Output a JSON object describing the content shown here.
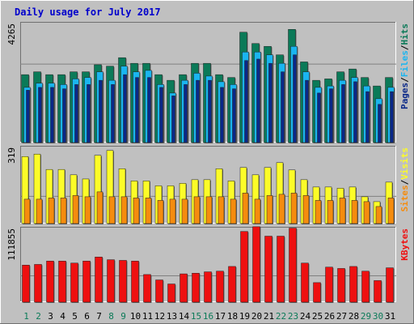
{
  "chart_data": {
    "type": "bar",
    "title": "Daily usage for July 2017",
    "categories": [
      "1",
      "2",
      "3",
      "4",
      "5",
      "6",
      "7",
      "8",
      "9",
      "10",
      "11",
      "12",
      "13",
      "14",
      "15",
      "16",
      "17",
      "18",
      "19",
      "20",
      "21",
      "22",
      "23",
      "24",
      "25",
      "26",
      "27",
      "28",
      "29",
      "30",
      "31"
    ],
    "weekend_days": [
      "1",
      "2",
      "8",
      "9",
      "15",
      "16",
      "22",
      "23",
      "29",
      "30"
    ],
    "panels": [
      {
        "id": "hits",
        "ymax_label": "4265",
        "ylim": [
          0,
          4265
        ],
        "right_axis_labels": [
          "Pages",
          "Files",
          "Hits"
        ],
        "series": [
          {
            "name": "Hits",
            "color": "#0b7a58",
            "values": [
              2400,
              2500,
              2400,
              2400,
              2500,
              2500,
              2750,
              2700,
              3000,
              2800,
              2800,
              2400,
              2200,
              2400,
              2800,
              2800,
              2400,
              2300,
              3900,
              3500,
              3400,
              3100,
              4000,
              2850,
              2200,
              2250,
              2500,
              2600,
              2300,
              2000,
              2300
            ]
          },
          {
            "name": "Files",
            "color": "#1ab5f0",
            "values": [
              1950,
              2100,
              2100,
              2050,
              2250,
              2300,
              2500,
              2200,
              2700,
              2500,
              2550,
              2050,
              1750,
              2200,
              2450,
              2350,
              2150,
              2050,
              3200,
              3200,
              3100,
              2800,
              3400,
              2500,
              1950,
              2000,
              2200,
              2300,
              2000,
              1550,
              1950
            ]
          },
          {
            "name": "Pages",
            "color": "#0a2888",
            "values": [
              1850,
              1950,
              1950,
              1900,
              2050,
              2050,
              2200,
              2050,
              2400,
              2300,
              2300,
              1950,
              1650,
              2050,
              2200,
              2200,
              1950,
              1900,
              2900,
              2950,
              2800,
              2500,
              3100,
              2200,
              1750,
              1900,
              2050,
              2150,
              1800,
              1350,
              1800
            ]
          }
        ]
      },
      {
        "id": "visits",
        "ymax_label": "319",
        "ylim": [
          0,
          319
        ],
        "right_axis_labels": [
          "Sites",
          "Visits"
        ],
        "series": [
          {
            "name": "Visits",
            "color": "#fcfc28",
            "values": [
              275,
              285,
              222,
              222,
              200,
              183,
              280,
              300,
              225,
              175,
              175,
              155,
              155,
              165,
              180,
              180,
              225,
              175,
              230,
              200,
              230,
              250,
              220,
              180,
              150,
              150,
              145,
              150,
              110,
              90,
              170
            ]
          },
          {
            "name": "Sites",
            "color": "#f58c0e",
            "values": [
              100,
              100,
              105,
              105,
              115,
              110,
              130,
              110,
              110,
              105,
              105,
              95,
              100,
              100,
              110,
              110,
              110,
              100,
              125,
              100,
              115,
              120,
              125,
              115,
              95,
              95,
              105,
              95,
              90,
              70,
              105
            ]
          }
        ]
      },
      {
        "id": "kbytes",
        "ymax_label": "111855",
        "ylim": [
          0,
          111855
        ],
        "right_axis_labels": [
          "KBytes"
        ],
        "series": [
          {
            "name": "KBytes",
            "color": "#ee1010",
            "values": [
              55000,
              56000,
              61000,
              61000,
              58000,
              61000,
              67000,
              63000,
              62000,
              61000,
              41000,
              33000,
              27000,
              42000,
              43000,
              45000,
              46000,
              53000,
              105000,
              112000,
              98000,
              98000,
              110000,
              58000,
              29000,
              52000,
              50000,
              53000,
              46000,
              32000,
              51000
            ]
          }
        ]
      }
    ]
  }
}
